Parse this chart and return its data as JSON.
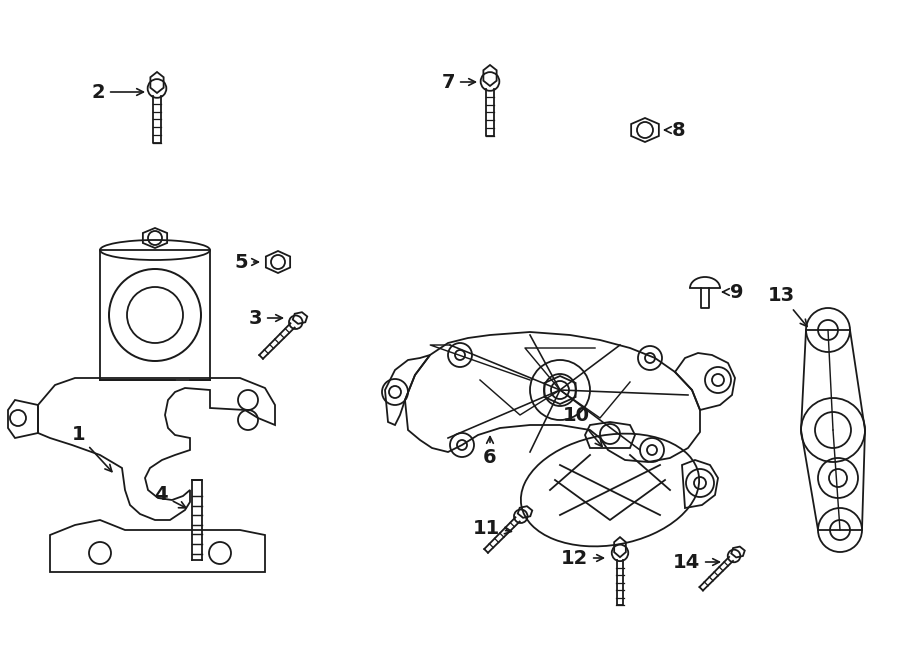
{
  "bg_color": "#ffffff",
  "line_color": "#1a1a1a",
  "fig_width": 9.0,
  "fig_height": 6.61,
  "dpi": 100,
  "label_fs": 14,
  "lw": 1.3
}
